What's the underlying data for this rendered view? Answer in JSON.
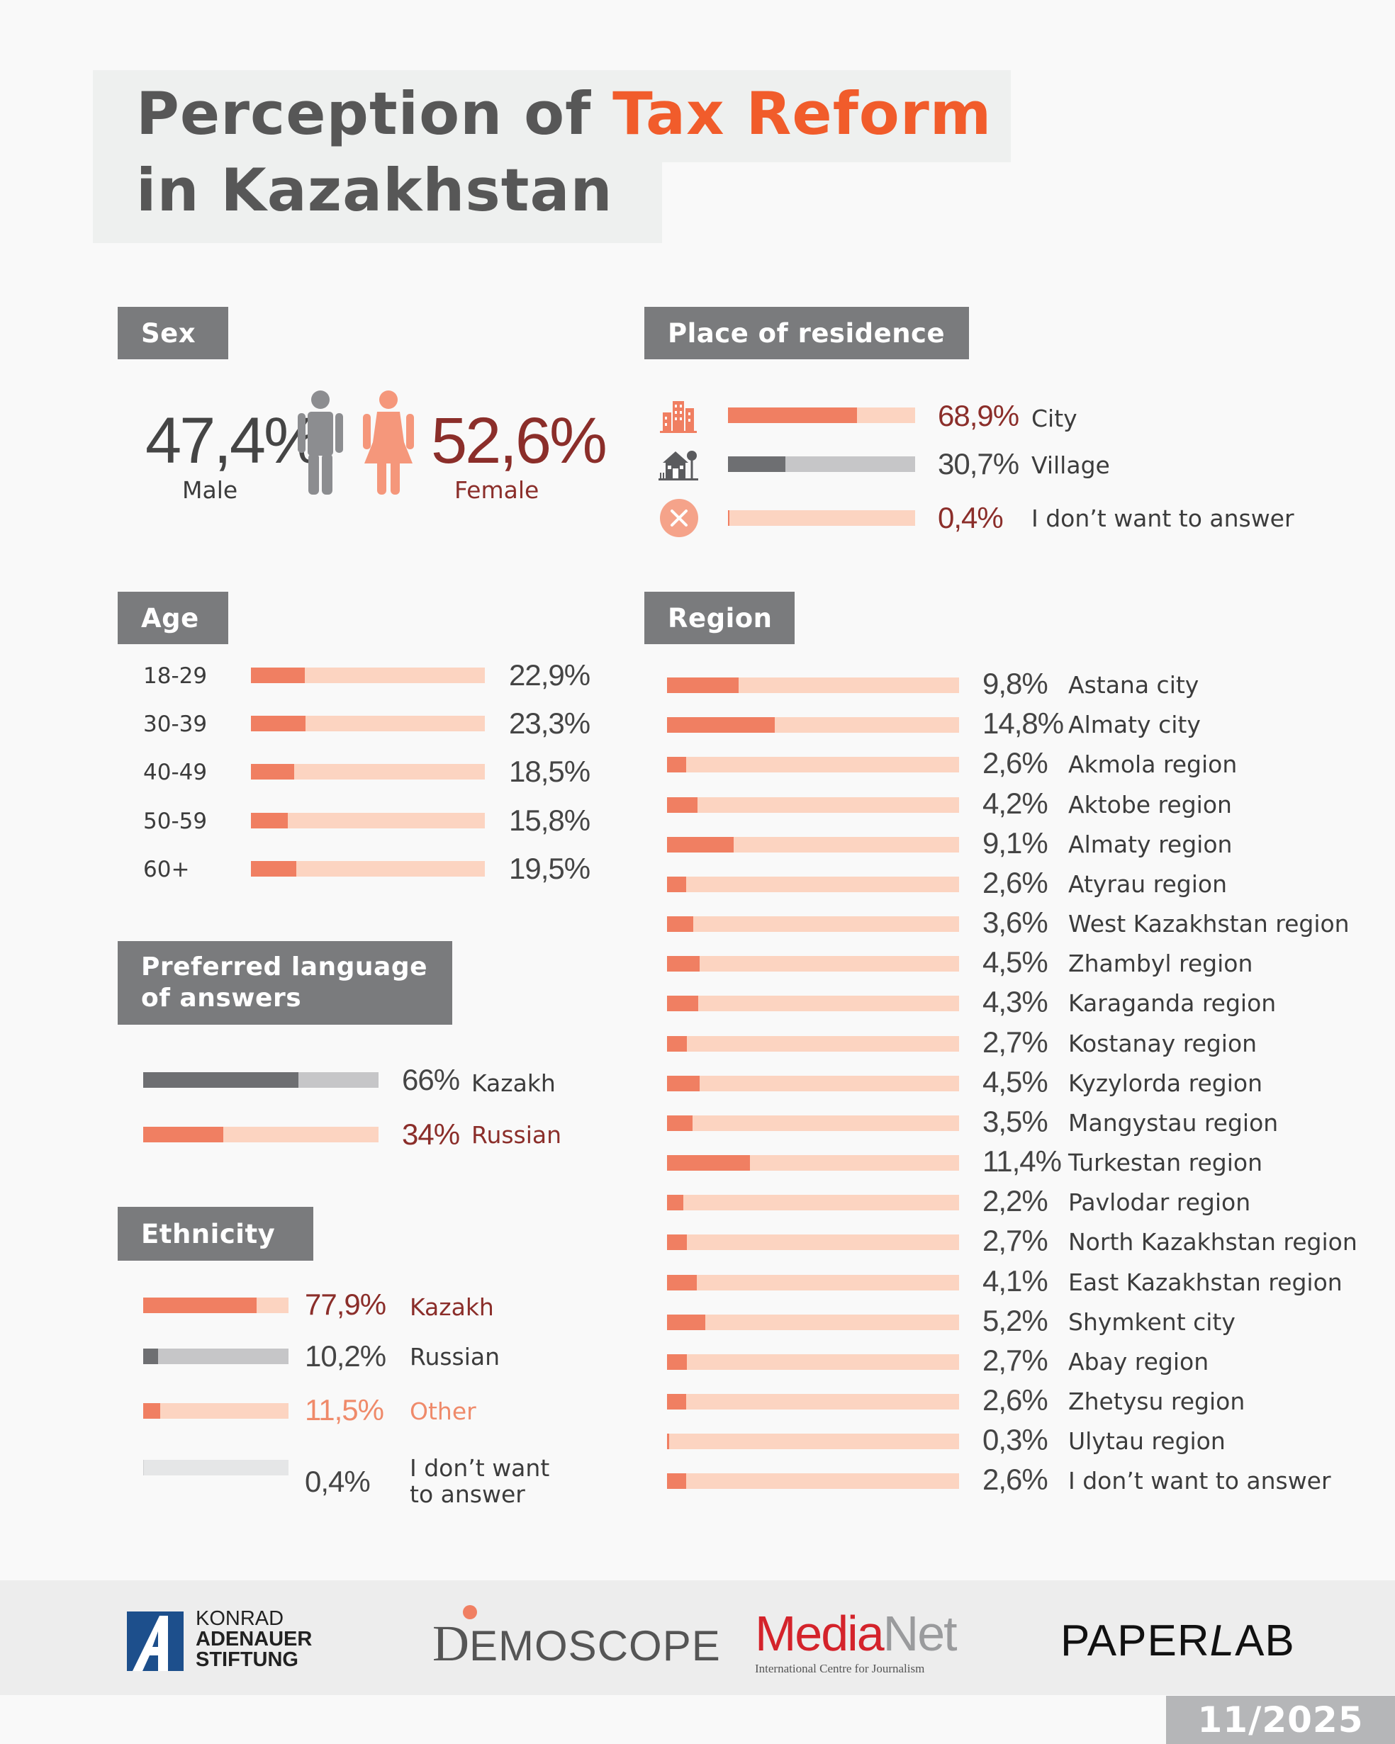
{
  "title": {
    "part1": "Perception of ",
    "accent": "Tax Reform",
    "part2": "in Kazakhstan"
  },
  "colors": {
    "accent": "#f15c2b",
    "bar_fill": "#f07f62",
    "bar_track": "#fcd4c1",
    "grey_fill": "#6e6f72",
    "dark_red": "#8b2e2a"
  },
  "sex": {
    "header": "Sex",
    "male_pct": "47,4%",
    "male_label": "Male",
    "male_icon": "male-figure-icon",
    "female_pct": "52,6%",
    "female_label": "Female",
    "female_icon": "female-figure-icon"
  },
  "residence": {
    "header": "Place of residence",
    "items": [
      {
        "label": "City",
        "value": 68.9,
        "display": "68,9%",
        "icon": "city-buildings-icon"
      },
      {
        "label": "Village",
        "value": 30.7,
        "display": "30,7%",
        "icon": "village-house-icon"
      },
      {
        "label": "I don’t want to answer",
        "value": 0.4,
        "display": "0,4%",
        "icon": "close-circle-icon"
      }
    ]
  },
  "age": {
    "header": "Age",
    "items": [
      {
        "label": "18-29",
        "value": 22.9,
        "display": "22,9%"
      },
      {
        "label": "30-39",
        "value": 23.3,
        "display": "23,3%"
      },
      {
        "label": "40-49",
        "value": 18.5,
        "display": "18,5%"
      },
      {
        "label": "50-59",
        "value": 15.8,
        "display": "15,8%"
      },
      {
        "label": "60+",
        "value": 19.5,
        "display": "19,5%"
      }
    ]
  },
  "language": {
    "header": "Preferred language\nof answers",
    "items": [
      {
        "label": "Kazakh",
        "value": 66,
        "display": "66%"
      },
      {
        "label": "Russian",
        "value": 34,
        "display": "34%"
      }
    ]
  },
  "ethnicity": {
    "header": "Ethnicity",
    "items": [
      {
        "label": "Kazakh",
        "value": 77.9,
        "display": "77,9%"
      },
      {
        "label": "Russian",
        "value": 10.2,
        "display": "10,2%"
      },
      {
        "label": "Other",
        "value": 11.5,
        "display": "11,5%"
      },
      {
        "label": "I don’t want\nto answer",
        "value": 0.4,
        "display": "0,4%"
      }
    ]
  },
  "region": {
    "header": "Region",
    "items": [
      {
        "label": "Astana city",
        "value": 9.8,
        "display": "9,8%"
      },
      {
        "label": "Almaty city",
        "value": 14.8,
        "display": "14,8%"
      },
      {
        "label": "Akmola region",
        "value": 2.6,
        "display": "2,6%"
      },
      {
        "label": "Aktobe region",
        "value": 4.2,
        "display": "4,2%"
      },
      {
        "label": "Almaty region",
        "value": 9.1,
        "display": "9,1%"
      },
      {
        "label": "Atyrau region",
        "value": 2.6,
        "display": "2,6%"
      },
      {
        "label": "West Kazakhstan region",
        "value": 3.6,
        "display": "3,6%"
      },
      {
        "label": "Zhambyl region",
        "value": 4.5,
        "display": "4,5%"
      },
      {
        "label": "Karaganda region",
        "value": 4.3,
        "display": "4,3%"
      },
      {
        "label": "Kostanay region",
        "value": 2.7,
        "display": "2,7%"
      },
      {
        "label": "Kyzylorda region",
        "value": 4.5,
        "display": "4,5%"
      },
      {
        "label": "Mangystau region",
        "value": 3.5,
        "display": "3,5%"
      },
      {
        "label": "Turkestan region",
        "value": 11.4,
        "display": "11,4%"
      },
      {
        "label": "Pavlodar region",
        "value": 2.2,
        "display": "2,2%"
      },
      {
        "label": "North Kazakhstan region",
        "value": 2.7,
        "display": "2,7%"
      },
      {
        "label": "East Kazakhstan region",
        "value": 4.1,
        "display": "4,1%"
      },
      {
        "label": "Shymkent city",
        "value": 5.2,
        "display": "5,2%"
      },
      {
        "label": "Abay region",
        "value": 2.7,
        "display": "2,7%"
      },
      {
        "label": "Zhetysu region",
        "value": 2.6,
        "display": "2,6%"
      },
      {
        "label": "Ulytau region",
        "value": 0.3,
        "display": "0,3%"
      },
      {
        "label": "I don’t want to answer",
        "value": 2.6,
        "display": "2,6%"
      }
    ]
  },
  "chart_data": [
    {
      "type": "bar",
      "title": "Sex",
      "categories": [
        "Male",
        "Female"
      ],
      "values": [
        47.4,
        52.6
      ]
    },
    {
      "type": "bar",
      "title": "Place of residence",
      "categories": [
        "City",
        "Village",
        "I don’t want to answer"
      ],
      "values": [
        68.9,
        30.7,
        0.4
      ]
    },
    {
      "type": "bar",
      "title": "Age",
      "categories": [
        "18-29",
        "30-39",
        "40-49",
        "50-59",
        "60+"
      ],
      "values": [
        22.9,
        23.3,
        18.5,
        15.8,
        19.5
      ]
    },
    {
      "type": "bar",
      "title": "Preferred language of answers",
      "categories": [
        "Kazakh",
        "Russian"
      ],
      "values": [
        66,
        34
      ]
    },
    {
      "type": "bar",
      "title": "Ethnicity",
      "categories": [
        "Kazakh",
        "Russian",
        "Other",
        "I don’t want to answer"
      ],
      "values": [
        77.9,
        10.2,
        11.5,
        0.4
      ]
    },
    {
      "type": "bar",
      "title": "Region",
      "categories": [
        "Astana city",
        "Almaty city",
        "Akmola region",
        "Aktobe region",
        "Almaty region",
        "Atyrau region",
        "West Kazakhstan region",
        "Zhambyl region",
        "Karaganda region",
        "Kostanay region",
        "Kyzylorda region",
        "Mangystau region",
        "Turkestan region",
        "Pavlodar region",
        "North Kazakhstan region",
        "East Kazakhstan region",
        "Shymkent city",
        "Abay region",
        "Zhetysu region",
        "Ulytau region",
        "I don’t want to answer"
      ],
      "values": [
        9.8,
        14.8,
        2.6,
        4.2,
        9.1,
        2.6,
        3.6,
        4.5,
        4.3,
        2.7,
        4.5,
        3.5,
        11.4,
        2.2,
        2.7,
        4.1,
        5.2,
        2.7,
        2.6,
        0.3,
        2.6
      ]
    }
  ],
  "footer": {
    "kas": {
      "line1": "KONRAD",
      "line2": "ADENAUER",
      "line3": "STIFTUNG"
    },
    "demoscope": {
      "d": "D",
      "rest": "EMOSCOPE"
    },
    "medianet": {
      "media": "Media",
      "net": "Net",
      "tagline": "International Centre for Journalism"
    },
    "paperlab": {
      "paper": "PAPER",
      "l": "L",
      "ab": "AB"
    },
    "date": "11/2025"
  }
}
